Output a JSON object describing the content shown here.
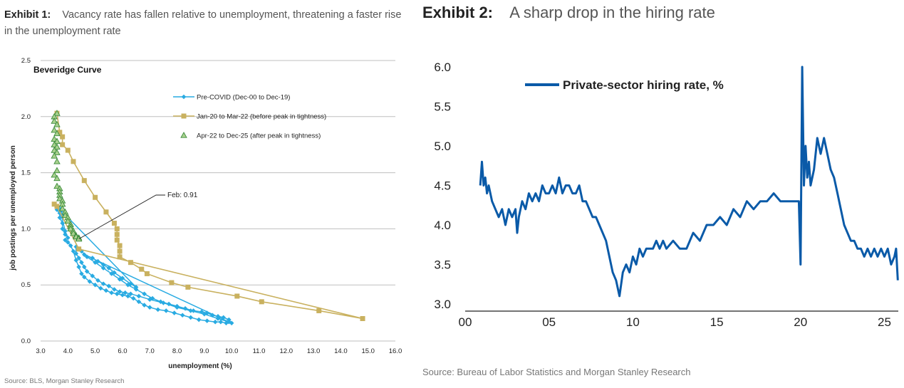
{
  "exhibit1": {
    "label": "Exhibit 1:",
    "title": "Vacancy rate has fallen relative to unemployment, threatening a faster rise in the unemployment rate",
    "source": "Source: BLS, Morgan Stanley Research"
  },
  "exhibit2": {
    "label": "Exhibit 2:",
    "title": "A sharp drop in the hiring rate",
    "source": "Source: Bureau of Labor Statistics and Morgan Stanley Research"
  },
  "colors": {
    "precovid": "#29ABE2",
    "jan20": "#C9B15F",
    "apr22_fill": "#A9D18E",
    "apr22_stroke": "#3A8A3A",
    "hiring": "#0A5AA8",
    "grid": "#BFBFBF"
  },
  "chart_data": [
    {
      "type": "scatter",
      "title": "Beveridge Curve",
      "xlabel": "unemployment (%)",
      "ylabel": "job postings per unemployed person",
      "xlim": [
        3.0,
        16.0
      ],
      "ylim": [
        0.0,
        2.5
      ],
      "xticks": [
        "3.0",
        "4.0",
        "5.0",
        "6.0",
        "7.0",
        "8.0",
        "9.0",
        "10.0",
        "11.0",
        "12.0",
        "13.0",
        "14.0",
        "15.0",
        "16.0"
      ],
      "yticks": [
        "0.0",
        "0.5",
        "1.0",
        "1.5",
        "2.0",
        "2.5"
      ],
      "annotation": {
        "text": "Feb: 0.91",
        "x": 4.4,
        "y": 0.91
      },
      "series": [
        {
          "name": "Pre-COVID (Dec-00 to Dec-19)",
          "marker": "diamond",
          "points": [
            [
              3.9,
              0.9
            ],
            [
              4.0,
              0.88
            ],
            [
              4.1,
              0.85
            ],
            [
              4.2,
              0.8
            ],
            [
              4.3,
              0.72
            ],
            [
              4.4,
              0.66
            ],
            [
              4.5,
              0.6
            ],
            [
              4.6,
              0.57
            ],
            [
              4.8,
              0.53
            ],
            [
              5.0,
              0.5
            ],
            [
              5.2,
              0.47
            ],
            [
              5.4,
              0.45
            ],
            [
              5.6,
              0.43
            ],
            [
              5.8,
              0.42
            ],
            [
              6.0,
              0.41
            ],
            [
              6.2,
              0.4
            ],
            [
              6.4,
              0.38
            ],
            [
              6.6,
              0.35
            ],
            [
              6.8,
              0.32
            ],
            [
              7.0,
              0.3
            ],
            [
              7.3,
              0.28
            ],
            [
              7.6,
              0.27
            ],
            [
              7.9,
              0.25
            ],
            [
              8.2,
              0.23
            ],
            [
              8.5,
              0.21
            ],
            [
              8.8,
              0.19
            ],
            [
              9.1,
              0.18
            ],
            [
              9.4,
              0.17
            ],
            [
              9.6,
              0.17
            ],
            [
              9.8,
              0.16
            ],
            [
              10.0,
              0.16
            ],
            [
              9.9,
              0.19
            ],
            [
              9.7,
              0.21
            ],
            [
              9.5,
              0.22
            ],
            [
              9.3,
              0.23
            ],
            [
              9.1,
              0.25
            ],
            [
              8.9,
              0.26
            ],
            [
              8.6,
              0.27
            ],
            [
              8.3,
              0.29
            ],
            [
              8.0,
              0.31
            ],
            [
              7.7,
              0.33
            ],
            [
              7.4,
              0.35
            ],
            [
              7.1,
              0.38
            ],
            [
              6.8,
              0.42
            ],
            [
              6.5,
              0.46
            ],
            [
              6.2,
              0.5
            ],
            [
              5.9,
              0.55
            ],
            [
              5.6,
              0.6
            ],
            [
              5.3,
              0.65
            ],
            [
              5.0,
              0.7
            ],
            [
              4.7,
              0.75
            ],
            [
              4.5,
              0.8
            ],
            [
              4.3,
              0.84
            ],
            [
              4.3,
              0.78
            ],
            [
              4.4,
              0.74
            ],
            [
              4.5,
              0.7
            ],
            [
              4.6,
              0.66
            ],
            [
              4.7,
              0.62
            ],
            [
              4.9,
              0.58
            ],
            [
              5.1,
              0.54
            ],
            [
              5.3,
              0.51
            ],
            [
              5.5,
              0.49
            ],
            [
              5.7,
              0.46
            ],
            [
              5.9,
              0.44
            ],
            [
              6.1,
              0.43
            ],
            [
              6.3,
              0.42
            ],
            [
              6.6,
              0.4
            ],
            [
              7.0,
              0.37
            ],
            [
              7.5,
              0.34
            ],
            [
              8.0,
              0.3
            ],
            [
              8.5,
              0.27
            ],
            [
              9.0,
              0.24
            ],
            [
              9.5,
              0.2
            ],
            [
              9.9,
              0.17
            ],
            [
              4.6,
              0.77
            ],
            [
              4.9,
              0.74
            ],
            [
              5.1,
              0.71
            ],
            [
              5.3,
              0.68
            ],
            [
              5.5,
              0.65
            ],
            [
              5.7,
              0.61
            ],
            [
              6.0,
              0.56
            ],
            [
              6.3,
              0.51
            ],
            [
              6.5,
              0.48
            ],
            [
              3.6,
              1.2
            ],
            [
              3.6,
              1.17
            ],
            [
              3.7,
              1.14
            ],
            [
              3.7,
              1.1
            ],
            [
              3.8,
              1.05
            ],
            [
              3.8,
              1.0
            ],
            [
              3.9,
              0.95
            ],
            [
              4.0,
              0.92
            ],
            [
              3.9,
              0.98
            ],
            [
              3.7,
              1.18
            ],
            [
              3.8,
              1.12
            ]
          ]
        },
        {
          "name": "Jan-20 to Mar-22 (before peak in tightness)",
          "marker": "square",
          "points": [
            [
              3.5,
              1.22
            ],
            [
              3.6,
              1.2
            ],
            [
              4.4,
              0.82
            ],
            [
              14.8,
              0.2
            ],
            [
              13.2,
              0.27
            ],
            [
              11.1,
              0.35
            ],
            [
              10.2,
              0.4
            ],
            [
              8.4,
              0.48
            ],
            [
              7.8,
              0.52
            ],
            [
              6.9,
              0.6
            ],
            [
              6.7,
              0.64
            ],
            [
              6.3,
              0.7
            ],
            [
              5.9,
              0.75
            ],
            [
              5.9,
              0.8
            ],
            [
              5.9,
              0.85
            ],
            [
              5.8,
              0.9
            ],
            [
              5.8,
              0.95
            ],
            [
              5.8,
              1.0
            ],
            [
              5.7,
              1.05
            ],
            [
              5.4,
              1.15
            ],
            [
              5.0,
              1.28
            ],
            [
              4.6,
              1.43
            ],
            [
              4.2,
              1.6
            ],
            [
              4.0,
              1.7
            ],
            [
              3.8,
              1.75
            ],
            [
              3.8,
              1.82
            ],
            [
              3.7,
              1.86
            ],
            [
              3.6,
              2.03
            ]
          ]
        },
        {
          "name": "Apr-22 to Dec-25 (after peak in tightness)",
          "marker": "triangle",
          "points": [
            [
              3.6,
              2.03
            ],
            [
              3.5,
              2.0
            ],
            [
              3.5,
              1.96
            ],
            [
              3.6,
              1.93
            ],
            [
              3.5,
              1.88
            ],
            [
              3.6,
              1.85
            ],
            [
              3.5,
              1.8
            ],
            [
              3.6,
              1.78
            ],
            [
              3.5,
              1.75
            ],
            [
              3.6,
              1.73
            ],
            [
              3.5,
              1.7
            ],
            [
              3.6,
              1.68
            ],
            [
              3.5,
              1.65
            ],
            [
              3.6,
              1.6
            ],
            [
              3.6,
              1.52
            ],
            [
              3.5,
              1.48
            ],
            [
              3.6,
              1.45
            ],
            [
              3.6,
              1.38
            ],
            [
              3.7,
              1.36
            ],
            [
              3.7,
              1.33
            ],
            [
              3.7,
              1.3
            ],
            [
              3.7,
              1.27
            ],
            [
              3.8,
              1.25
            ],
            [
              3.8,
              1.22
            ],
            [
              3.8,
              1.18
            ],
            [
              3.9,
              1.15
            ],
            [
              3.9,
              1.12
            ],
            [
              4.0,
              1.1
            ],
            [
              4.0,
              1.07
            ],
            [
              4.1,
              1.04
            ],
            [
              4.1,
              1.02
            ],
            [
              4.1,
              1.0
            ],
            [
              4.2,
              0.98
            ],
            [
              4.2,
              0.96
            ],
            [
              4.3,
              0.94
            ],
            [
              4.3,
              0.93
            ],
            [
              4.4,
              0.92
            ],
            [
              4.4,
              0.91
            ]
          ]
        }
      ]
    },
    {
      "type": "line",
      "title": "",
      "legend": "Private-sector hiring rate, %",
      "xlim": [
        2000,
        2026
      ],
      "ylim": [
        3.0,
        6.0
      ],
      "xticks": [
        {
          "value": 2000,
          "label": "00"
        },
        {
          "value": 2005,
          "label": "05"
        },
        {
          "value": 2010,
          "label": "10"
        },
        {
          "value": 2015,
          "label": "15"
        },
        {
          "value": 2020,
          "label": "20"
        },
        {
          "value": 2025,
          "label": "25"
        }
      ],
      "yticks": [
        "3.0",
        "3.5",
        "4.0",
        "4.5",
        "5.0",
        "5.5",
        "6.0"
      ],
      "x": [
        2000.9,
        2001.0,
        2001.1,
        2001.2,
        2001.3,
        2001.4,
        2001.6,
        2001.8,
        2002.0,
        2002.2,
        2002.4,
        2002.6,
        2002.8,
        2003.0,
        2003.1,
        2003.2,
        2003.4,
        2003.6,
        2003.8,
        2004.0,
        2004.2,
        2004.4,
        2004.6,
        2004.8,
        2005.0,
        2005.2,
        2005.4,
        2005.6,
        2005.8,
        2006.0,
        2006.2,
        2006.4,
        2006.6,
        2006.8,
        2007.0,
        2007.2,
        2007.4,
        2007.6,
        2007.8,
        2008.0,
        2008.2,
        2008.4,
        2008.6,
        2008.8,
        2009.0,
        2009.2,
        2009.4,
        2009.6,
        2009.8,
        2010.0,
        2010.2,
        2010.4,
        2010.6,
        2010.8,
        2011.0,
        2011.2,
        2011.4,
        2011.6,
        2011.8,
        2012.0,
        2012.4,
        2012.8,
        2013.2,
        2013.6,
        2014.0,
        2014.4,
        2014.8,
        2015.2,
        2015.6,
        2016.0,
        2016.4,
        2016.8,
        2017.2,
        2017.6,
        2018.0,
        2018.4,
        2018.8,
        2019.2,
        2019.6,
        2019.9,
        2020.0,
        2020.1,
        2020.2,
        2020.3,
        2020.4,
        2020.5,
        2020.6,
        2020.8,
        2021.0,
        2021.2,
        2021.4,
        2021.6,
        2021.8,
        2022.0,
        2022.2,
        2022.4,
        2022.6,
        2022.8,
        2023.0,
        2023.2,
        2023.4,
        2023.6,
        2023.8,
        2024.0,
        2024.2,
        2024.4,
        2024.6,
        2024.8,
        2025.0,
        2025.2,
        2025.4,
        2025.6,
        2025.7,
        2025.8
      ],
      "values": [
        4.5,
        4.8,
        4.5,
        4.6,
        4.4,
        4.5,
        4.3,
        4.2,
        4.1,
        4.2,
        4.0,
        4.2,
        4.1,
        4.2,
        3.9,
        4.1,
        4.3,
        4.2,
        4.4,
        4.3,
        4.4,
        4.3,
        4.5,
        4.4,
        4.4,
        4.5,
        4.4,
        4.6,
        4.4,
        4.5,
        4.5,
        4.4,
        4.4,
        4.5,
        4.3,
        4.3,
        4.2,
        4.1,
        4.1,
        4.0,
        3.9,
        3.8,
        3.6,
        3.4,
        3.3,
        3.1,
        3.4,
        3.5,
        3.4,
        3.6,
        3.5,
        3.7,
        3.6,
        3.7,
        3.7,
        3.7,
        3.8,
        3.7,
        3.8,
        3.7,
        3.8,
        3.7,
        3.7,
        3.9,
        3.8,
        4.0,
        4.0,
        4.1,
        4.0,
        4.2,
        4.1,
        4.3,
        4.2,
        4.3,
        4.3,
        4.4,
        4.3,
        4.3,
        4.3,
        4.3,
        3.5,
        6.0,
        4.5,
        5.0,
        4.6,
        4.8,
        4.5,
        4.7,
        5.1,
        4.9,
        5.1,
        4.9,
        4.7,
        4.6,
        4.4,
        4.2,
        4.0,
        3.9,
        3.8,
        3.8,
        3.7,
        3.7,
        3.6,
        3.7,
        3.6,
        3.7,
        3.6,
        3.7,
        3.6,
        3.7,
        3.5,
        3.6,
        3.7,
        3.3
      ]
    }
  ]
}
